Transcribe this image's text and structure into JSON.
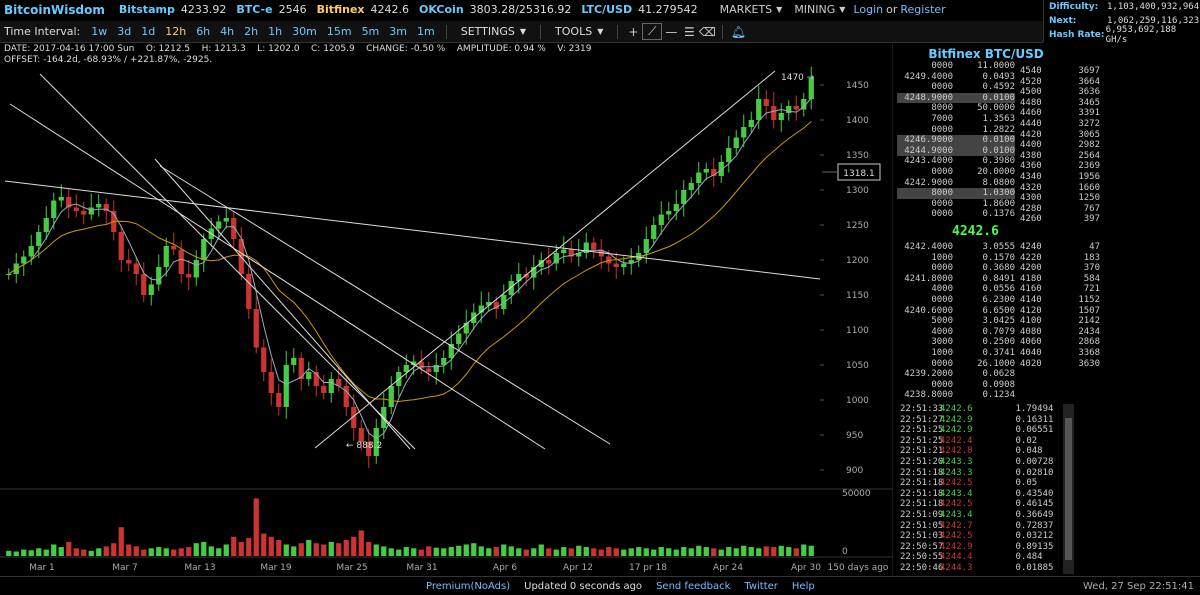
{
  "header": {
    "brand": "BitcoinWisdom",
    "exchanges": [
      {
        "name": "Bitstamp",
        "price": "4233.92",
        "color": "#6cf"
      },
      {
        "name": "BTC-e",
        "price": "2546",
        "color": "#6cf"
      },
      {
        "name": "Bitfinex",
        "price": "4242.6",
        "color": "#fc6"
      },
      {
        "name": "OKCoin",
        "price": "3803.28/25316.92",
        "color": "#6cf"
      },
      {
        "name": "LTC/USD",
        "price": "41.279542",
        "color": "#6cf"
      }
    ],
    "markets_label": "MARKETS",
    "mining_label": "MINING",
    "login_label": "Login",
    "or_label": "or",
    "register_label": "Register"
  },
  "stats": {
    "difficulty_label": "Difficulty:",
    "difficulty_value": "1,103,400,932,964",
    "next_label": "Next:",
    "next_value": "1,062,259,116,323",
    "hashrate_label": "Hash Rate:",
    "hashrate_value": "6,953,692,188 GH/s"
  },
  "toolbar": {
    "time_interval_label": "Time Interval:",
    "intervals": [
      "1w",
      "3d",
      "1d",
      "12h",
      "6h",
      "4h",
      "2h",
      "1h",
      "30m",
      "15m",
      "5m",
      "3m",
      "1m"
    ],
    "active_interval": "12h",
    "settings_label": "SETTINGS",
    "tools_label": "TOOLS"
  },
  "info": {
    "line1": "DATE: 2017-04-16 17:00 Sun    O: 1212.5    H: 1213.3    L: 1202.0    C: 1205.9    CHANGE: -0.50 %    AMPLITUDE: 0.94 %    V: 2319",
    "line2": "OFFSET: -164.2d, -68.93% / +221.87%, -2925."
  },
  "chart_data": {
    "type": "candlestick",
    "price_axis": {
      "ticks": [
        "1450",
        "1400",
        "1350",
        "1300",
        "1250",
        "1200",
        "1150",
        "1100",
        "1050",
        "1000",
        "950",
        "900"
      ],
      "ylim": [
        880,
        1480
      ]
    },
    "volume_axis": {
      "ticks": [
        "50000",
        "0"
      ]
    },
    "x_ticks": [
      "Mar 1",
      "Mar 7",
      "Mar 13",
      "Mar 19",
      "Mar 25",
      "Mar 31",
      "Apr 6",
      "Apr 12",
      "17 pr 18",
      "Apr 24",
      "Apr 30"
    ],
    "span_label": "150 days ago",
    "crosshair_price": "1318.1",
    "annotations": [
      "1470 →",
      "← 888.2"
    ],
    "closes": [
      1180,
      1195,
      1205,
      1220,
      1240,
      1260,
      1285,
      1290,
      1275,
      1270,
      1265,
      1275,
      1280,
      1270,
      1240,
      1200,
      1195,
      1180,
      1150,
      1165,
      1190,
      1220,
      1215,
      1180,
      1175,
      1200,
      1230,
      1245,
      1255,
      1260,
      1230,
      1180,
      1130,
      1075,
      1040,
      1010,
      990,
      1050,
      1060,
      1030,
      1040,
      1020,
      1010,
      1030,
      1020,
      990,
      960,
      940,
      920,
      960,
      990,
      1020,
      1040,
      1050,
      1055,
      1045,
      1040,
      1050,
      1060,
      1080,
      1095,
      1110,
      1125,
      1135,
      1140,
      1130,
      1150,
      1170,
      1180,
      1175,
      1190,
      1200,
      1195,
      1210,
      1215,
      1205,
      1210,
      1225,
      1215,
      1205,
      1195,
      1190,
      1195,
      1200,
      1210,
      1230,
      1250,
      1265,
      1270,
      1280,
      1300,
      1310,
      1325,
      1330,
      1320,
      1340,
      1360,
      1375,
      1390,
      1400,
      1430,
      1420,
      1400,
      1410,
      1420,
      1415,
      1430,
      1460
    ],
    "volumes": [
      0.08,
      0.07,
      0.1,
      0.09,
      0.12,
      0.1,
      0.18,
      0.14,
      0.22,
      0.12,
      0.1,
      0.08,
      0.12,
      0.15,
      0.2,
      0.45,
      0.18,
      0.15,
      0.1,
      0.12,
      0.14,
      0.12,
      0.1,
      0.12,
      0.14,
      0.2,
      0.22,
      0.15,
      0.12,
      0.18,
      0.3,
      0.22,
      0.28,
      0.9,
      0.35,
      0.3,
      0.25,
      0.18,
      0.15,
      0.2,
      0.25,
      0.2,
      0.18,
      0.22,
      0.2,
      0.25,
      0.3,
      0.4,
      0.22,
      0.18,
      0.15,
      0.12,
      0.1,
      0.14,
      0.12,
      0.1,
      0.15,
      0.13,
      0.12,
      0.14,
      0.16,
      0.18,
      0.2,
      0.15,
      0.12,
      0.14,
      0.18,
      0.15,
      0.12,
      0.1,
      0.12,
      0.18,
      0.12,
      0.1,
      0.14,
      0.12,
      0.16,
      0.14,
      0.12,
      0.1,
      0.14,
      0.12,
      0.1,
      0.12,
      0.14,
      0.12,
      0.1,
      0.14,
      0.12,
      0.1,
      0.14,
      0.12,
      0.16,
      0.14,
      0.12,
      0.1,
      0.14,
      0.12,
      0.16,
      0.14,
      0.12,
      0.15,
      0.14,
      0.16,
      0.14,
      0.12,
      0.18,
      0.16
    ]
  },
  "orderbook": {
    "title": "Bitfinex BTC/USD",
    "last_price": "4242.6",
    "asks_depth": [
      {
        "price": "0000",
        "amount": "11.0000"
      },
      {
        "price": "4249.4000",
        "amount": "0.0493"
      },
      {
        "price": "0000",
        "amount": "0.4592"
      },
      {
        "price": "4248.9000",
        "amount": "0.0100"
      },
      {
        "price": "8000",
        "amount": "50.0000"
      },
      {
        "price": "7000",
        "amount": "1.3563"
      },
      {
        "price": "0000",
        "amount": "1.2822"
      },
      {
        "price": "4246.9000",
        "amount": "0.0100"
      },
      {
        "price": "4244.9000",
        "amount": "0.0100"
      },
      {
        "price": "4243.4000",
        "amount": "0.3980"
      },
      {
        "price": "0000",
        "amount": "20.0000"
      },
      {
        "price": "4242.9000",
        "amount": "8.0800"
      },
      {
        "price": "8000",
        "amount": "1.0300"
      },
      {
        "price": "0000",
        "amount": "1.8600"
      },
      {
        "price": "0000",
        "amount": "0.1376"
      }
    ],
    "bids_depth": [
      {
        "price": "4242.4000",
        "amount": "3.0555"
      },
      {
        "price": "1000",
        "amount": "0.1570"
      },
      {
        "price": "0000",
        "amount": "0.3680"
      },
      {
        "price": "4241.8000",
        "amount": "0.8491"
      },
      {
        "price": "4000",
        "amount": "0.0556"
      },
      {
        "price": "0000",
        "amount": "6.2300"
      },
      {
        "price": "4240.6000",
        "amount": "6.6500"
      },
      {
        "price": "5000",
        "amount": "3.0425"
      },
      {
        "price": "4000",
        "amount": "0.7079"
      },
      {
        "price": "3000",
        "amount": "0.2500"
      },
      {
        "price": "1000",
        "amount": "0.3741"
      },
      {
        "price": "0000",
        "amount": "26.1000"
      },
      {
        "price": "4239.2000",
        "amount": "0.0628"
      },
      {
        "price": "0000",
        "amount": "0.0908"
      },
      {
        "price": "4238.8000",
        "amount": "0.1234"
      }
    ],
    "ask_levels": [
      {
        "p": "4540",
        "s": "3697"
      },
      {
        "p": "4520",
        "s": "3664"
      },
      {
        "p": "4500",
        "s": "3636"
      },
      {
        "p": "4480",
        "s": "3465"
      },
      {
        "p": "4460",
        "s": "3391"
      },
      {
        "p": "4440",
        "s": "3272"
      },
      {
        "p": "4420",
        "s": "3065"
      },
      {
        "p": "4400",
        "s": "2982"
      },
      {
        "p": "4380",
        "s": "2564"
      },
      {
        "p": "4360",
        "s": "2369"
      },
      {
        "p": "4340",
        "s": "1956"
      },
      {
        "p": "4320",
        "s": "1660"
      },
      {
        "p": "4300",
        "s": "1250"
      },
      {
        "p": "4280",
        "s": "767"
      },
      {
        "p": "4260",
        "s": "397"
      }
    ],
    "bid_levels": [
      {
        "p": "4240",
        "s": "47"
      },
      {
        "p": "4220",
        "s": "183"
      },
      {
        "p": "4200",
        "s": "370"
      },
      {
        "p": "4180",
        "s": "584"
      },
      {
        "p": "4160",
        "s": "721"
      },
      {
        "p": "4140",
        "s": "1152"
      },
      {
        "p": "4120",
        "s": "1507"
      },
      {
        "p": "4100",
        "s": "2142"
      },
      {
        "p": "4080",
        "s": "2434"
      },
      {
        "p": "4060",
        "s": "2868"
      },
      {
        "p": "4040",
        "s": "3368"
      },
      {
        "p": "4020",
        "s": "3630"
      }
    ]
  },
  "trades": [
    {
      "time": "22:51:33",
      "price": "4242.6",
      "side": "buy",
      "amount": "1.79494"
    },
    {
      "time": "22:51:27",
      "price": "4242.9",
      "side": "buy",
      "amount": "0.16311"
    },
    {
      "time": "22:51:25",
      "price": "4242.9",
      "side": "buy",
      "amount": "0.06551"
    },
    {
      "time": "22:51:25",
      "price": "4242.4",
      "side": "sell",
      "amount": "0.02"
    },
    {
      "time": "22:51:21",
      "price": "4242.8",
      "side": "sell",
      "amount": "0.048"
    },
    {
      "time": "22:51:20",
      "price": "4243.3",
      "side": "buy",
      "amount": "0.00728"
    },
    {
      "time": "22:51:18",
      "price": "4243.3",
      "side": "buy",
      "amount": "0.02810"
    },
    {
      "time": "22:51:18",
      "price": "4242.5",
      "side": "sell",
      "amount": "0.05"
    },
    {
      "time": "22:51:18",
      "price": "4243.4",
      "side": "buy",
      "amount": "0.43540"
    },
    {
      "time": "22:51:18",
      "price": "4242.5",
      "side": "sell",
      "amount": "0.46145"
    },
    {
      "time": "22:51:09",
      "price": "4243.4",
      "side": "buy",
      "amount": "0.36649"
    },
    {
      "time": "22:51:05",
      "price": "4242.7",
      "side": "sell",
      "amount": "0.72837"
    },
    {
      "time": "22:51:03",
      "price": "4242.5",
      "side": "sell",
      "amount": "0.03212"
    },
    {
      "time": "22:50:57",
      "price": "4242.9",
      "side": "sell",
      "amount": "0.89135"
    },
    {
      "time": "22:50:55",
      "price": "4244.4",
      "side": "sell",
      "amount": "0.484"
    },
    {
      "time": "22:50:46",
      "price": "4244.3",
      "side": "sell",
      "amount": "0.01885"
    }
  ],
  "footer": {
    "premium": "Premium(NoAds)",
    "updated": "Updated 0 seconds ago",
    "feedback": "Send feedback",
    "twitter": "Twitter",
    "help": "Help",
    "datetime": "Wed, 27 Sep 22:51:41"
  },
  "colors": {
    "up": "#4c4",
    "down": "#c33",
    "accent": "#6cf",
    "trade_buy": "#4c4",
    "trade_sell": "#c33"
  }
}
